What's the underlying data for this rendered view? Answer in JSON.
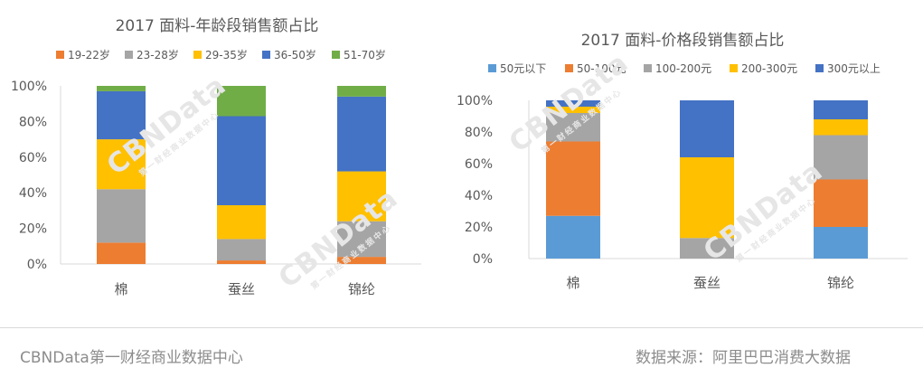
{
  "footer": {
    "left": "CBNData第一财经商业数据中心",
    "right": "数据来源：阿里巴巴消费大数据"
  },
  "watermark": {
    "brand": "CBNData",
    "sub": "第一财经商业数据中心"
  },
  "chart_data": [
    {
      "type": "bar",
      "stacked": true,
      "title": "2017 面料-年龄段销售额占比",
      "categories": [
        "棉",
        "蚕丝",
        "锦纶"
      ],
      "legend_position": "top",
      "ylim": [
        0,
        100
      ],
      "yticks": [
        "0%",
        "20%",
        "40%",
        "60%",
        "80%",
        "100%"
      ],
      "grid": false,
      "series": [
        {
          "name": "19-22岁",
          "color": "#ED7D31",
          "values": [
            12,
            2,
            4
          ]
        },
        {
          "name": "23-28岁",
          "color": "#A5A5A5",
          "values": [
            30,
            12,
            20
          ]
        },
        {
          "name": "29-35岁",
          "color": "#FFC000",
          "values": [
            28,
            19,
            28
          ]
        },
        {
          "name": "36-50岁",
          "color": "#4472C4",
          "values": [
            27,
            50,
            42
          ]
        },
        {
          "name": "51-70岁",
          "color": "#70AD47",
          "values": [
            3,
            17,
            6
          ]
        }
      ]
    },
    {
      "type": "bar",
      "stacked": true,
      "title": "2017 面料-价格段销售额占比",
      "categories": [
        "棉",
        "蚕丝",
        "锦纶"
      ],
      "legend_position": "top",
      "ylim": [
        0,
        100
      ],
      "yticks": [
        "0%",
        "20%",
        "40%",
        "60%",
        "80%",
        "100%"
      ],
      "grid": false,
      "series": [
        {
          "name": "50元以下",
          "color": "#5B9BD5",
          "values": [
            27,
            0,
            20
          ]
        },
        {
          "name": "50-100元",
          "color": "#ED7D31",
          "values": [
            47,
            0,
            30
          ]
        },
        {
          "name": "100-200元",
          "color": "#A5A5A5",
          "values": [
            18,
            13,
            28
          ]
        },
        {
          "name": "200-300元",
          "color": "#FFC000",
          "values": [
            4,
            51,
            10
          ]
        },
        {
          "name": "300元以上",
          "color": "#4472C4",
          "values": [
            4,
            36,
            12
          ]
        }
      ]
    }
  ]
}
